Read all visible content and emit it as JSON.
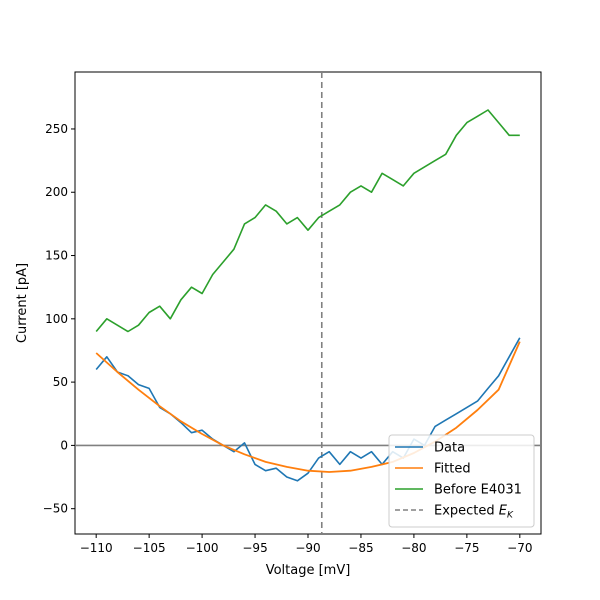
{
  "chart_data": {
    "type": "line",
    "title": "",
    "xlabel": "Voltage [mV]",
    "ylabel": "Current [pA]",
    "xlim": [
      -112,
      -68
    ],
    "ylim": [
      -70,
      295
    ],
    "xticks": [
      -110,
      -105,
      -100,
      -95,
      -90,
      -85,
      -80,
      -75,
      -70
    ],
    "yticks": [
      -50,
      0,
      50,
      100,
      150,
      200,
      250
    ],
    "x_tick_labels": [
      "−110",
      "−105",
      "−100",
      "−95",
      "−90",
      "−85",
      "−80",
      "−75",
      "−70"
    ],
    "y_tick_labels": [
      "−50",
      "0",
      "50",
      "100",
      "150",
      "200",
      "250"
    ],
    "grid": false,
    "legend_position": "lower-right",
    "reference_lines": [
      {
        "orientation": "horizontal",
        "value": 0,
        "color": "#808080",
        "style": "solid"
      },
      {
        "orientation": "vertical",
        "value": -88.7,
        "color": "#808080",
        "style": "dashed"
      }
    ],
    "series": [
      {
        "name": "Data",
        "color": "#1f77b4",
        "x": [
          -110,
          -109,
          -108,
          -107,
          -106,
          -105,
          -104,
          -103,
          -102,
          -101,
          -100,
          -99,
          -98,
          -97,
          -96,
          -95,
          -94,
          -93,
          -92,
          -91,
          -90,
          -89,
          -88,
          -87,
          -86,
          -85,
          -84,
          -83,
          -82,
          -81,
          -80,
          -79,
          -78,
          -77,
          -76,
          -75,
          -74,
          -73,
          -72,
          -71,
          -70
        ],
        "y": [
          60,
          70,
          58,
          55,
          48,
          45,
          30,
          25,
          18,
          10,
          12,
          5,
          0,
          -5,
          2,
          -15,
          -20,
          -18,
          -25,
          -28,
          -22,
          -10,
          -5,
          -15,
          -5,
          -10,
          -5,
          -15,
          -5,
          -10,
          5,
          0,
          15,
          20,
          25,
          30,
          35,
          45,
          55,
          70,
          85
        ]
      },
      {
        "name": "Fitted",
        "color": "#ff7f0e",
        "x": [
          -110,
          -108,
          -106,
          -104,
          -102,
          -100,
          -98,
          -96,
          -94,
          -92,
          -90,
          -88,
          -86,
          -84,
          -82,
          -80,
          -78,
          -76,
          -74,
          -72,
          -70
        ],
        "y": [
          73,
          58,
          44,
          31,
          19,
          9,
          0,
          -7,
          -13,
          -17,
          -20,
          -21,
          -20,
          -17,
          -13,
          -6,
          3,
          14,
          28,
          44,
          82
        ]
      },
      {
        "name": "Before E4031",
        "color": "#2ca02c",
        "x": [
          -110,
          -109,
          -108,
          -107,
          -106,
          -105,
          -104,
          -103,
          -102,
          -101,
          -100,
          -99,
          -98,
          -97,
          -96,
          -95,
          -94,
          -93,
          -92,
          -91,
          -90,
          -89,
          -88,
          -87,
          -86,
          -85,
          -84,
          -83,
          -82,
          -81,
          -80,
          -79,
          -78,
          -77,
          -76,
          -75,
          -74,
          -73,
          -72,
          -71,
          -70
        ],
        "y": [
          90,
          100,
          95,
          90,
          95,
          105,
          110,
          100,
          115,
          125,
          120,
          135,
          145,
          155,
          175,
          180,
          190,
          185,
          175,
          180,
          170,
          180,
          185,
          190,
          200,
          205,
          200,
          215,
          210,
          205,
          215,
          220,
          225,
          230,
          245,
          255,
          260,
          265,
          255,
          245,
          245
        ]
      },
      {
        "name": "Expected E_K",
        "color": "#808080",
        "style": "dashed",
        "legend_label_main": "Expected ",
        "legend_label_italic": "E",
        "legend_label_sub": "K"
      }
    ]
  }
}
